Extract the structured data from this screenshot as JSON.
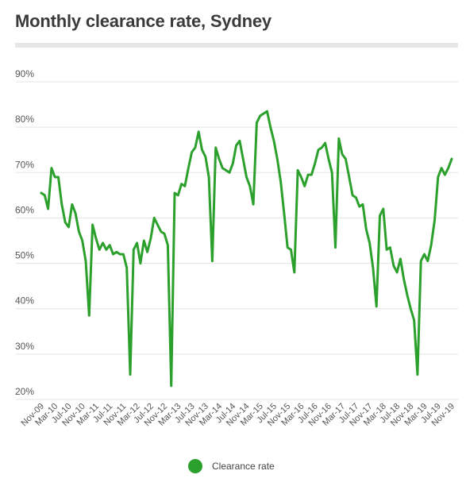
{
  "chart_data": {
    "type": "line",
    "title": "Monthly clearance rate, Sydney",
    "xlabel": "",
    "ylabel": "",
    "ylim": [
      20,
      90
    ],
    "y_ticks": [
      "20%",
      "30%",
      "40%",
      "50%",
      "60%",
      "70%",
      "80%",
      "90%"
    ],
    "grid": true,
    "legend_position": "bottom",
    "line_color": "#2ca02c",
    "x_ticks": [
      "Nov-09",
      "Mar-10",
      "Jul-10",
      "Nov-10",
      "Mar-11",
      "Jul-11",
      "Nov-11",
      "Mar-12",
      "Jul-12",
      "Nov-12",
      "Mar-13",
      "Jul-13",
      "Nov-13",
      "Mar-14",
      "Jul-14",
      "Nov-14",
      "Mar-15",
      "Jul-15",
      "Nov-15",
      "Mar-16",
      "Jul-16",
      "Nov-16",
      "Mar-17",
      "Jul-17",
      "Nov-17",
      "Mar-18",
      "Jul-18",
      "Nov-18",
      "Mar-19",
      "Jul-19",
      "Nov-19"
    ],
    "series": [
      {
        "name": "Clearance rate",
        "color": "#2ca02c",
        "values": [
          65.5,
          65,
          62,
          71,
          69,
          69,
          63,
          59,
          58,
          63,
          61,
          57,
          55,
          50.5,
          38.5,
          58.5,
          55.5,
          53,
          54.5,
          53,
          54,
          52,
          52.5,
          52,
          52,
          49,
          25.5,
          53,
          54.5,
          50,
          55,
          52.5,
          55.5,
          60,
          58.5,
          57,
          56.5,
          54,
          23,
          65.5,
          65,
          67.5,
          67,
          71,
          74.5,
          75.5,
          79,
          75,
          73.5,
          69,
          50.5,
          75.5,
          73,
          71,
          70.5,
          70,
          72,
          76,
          77,
          73,
          69,
          67,
          63,
          81,
          82.5,
          83,
          83.5,
          80,
          77,
          73,
          68,
          61,
          53.5,
          53,
          48,
          70.5,
          69,
          67,
          69.5,
          69.5,
          72,
          75,
          75.5,
          76.5,
          73,
          70,
          53.5,
          77.5,
          74,
          73,
          69,
          65,
          64.5,
          62.5,
          63,
          57.5,
          54.5,
          49,
          40.5,
          60.5,
          62,
          53,
          53.5,
          49.5,
          48,
          51,
          46.5,
          43,
          40,
          37.5,
          25.5,
          50.5,
          52,
          50.5,
          54,
          59.5,
          69,
          71,
          69.5,
          71,
          73
        ]
      }
    ]
  }
}
